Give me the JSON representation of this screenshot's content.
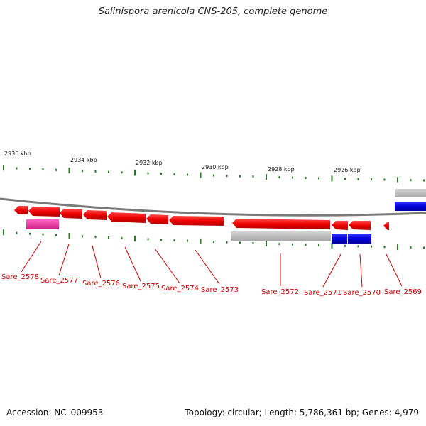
{
  "title": "Salinispora arenicola CNS-205, complete genome",
  "footer": {
    "accession": "Accession: NC_009953",
    "stats": "Topology: circular; Length: 5,786,361 bp; Genes: 4,979"
  },
  "colors": {
    "backbone": "#7a7a7a",
    "forward_gene": "#ee0000",
    "reverse_gene": "#0000dd",
    "ortholog_gray": "#b8b8b8",
    "ortholog_pink": "#e8309a",
    "tick": "#2a7a2a",
    "label": "#cc0000"
  },
  "kbp_labels": [
    "2936 kbp",
    "2934 kbp",
    "2932 kbp",
    "2930 kbp",
    "2928 kbp",
    "2926 kbp"
  ],
  "genes": [
    "Sare_2578",
    "Sare_2577",
    "Sare_2576",
    "Sare_2575",
    "Sare_2574",
    "Sare_2573",
    "Sare_2572",
    "Sare_2571",
    "Sare_2570",
    "Sare_2569"
  ]
}
